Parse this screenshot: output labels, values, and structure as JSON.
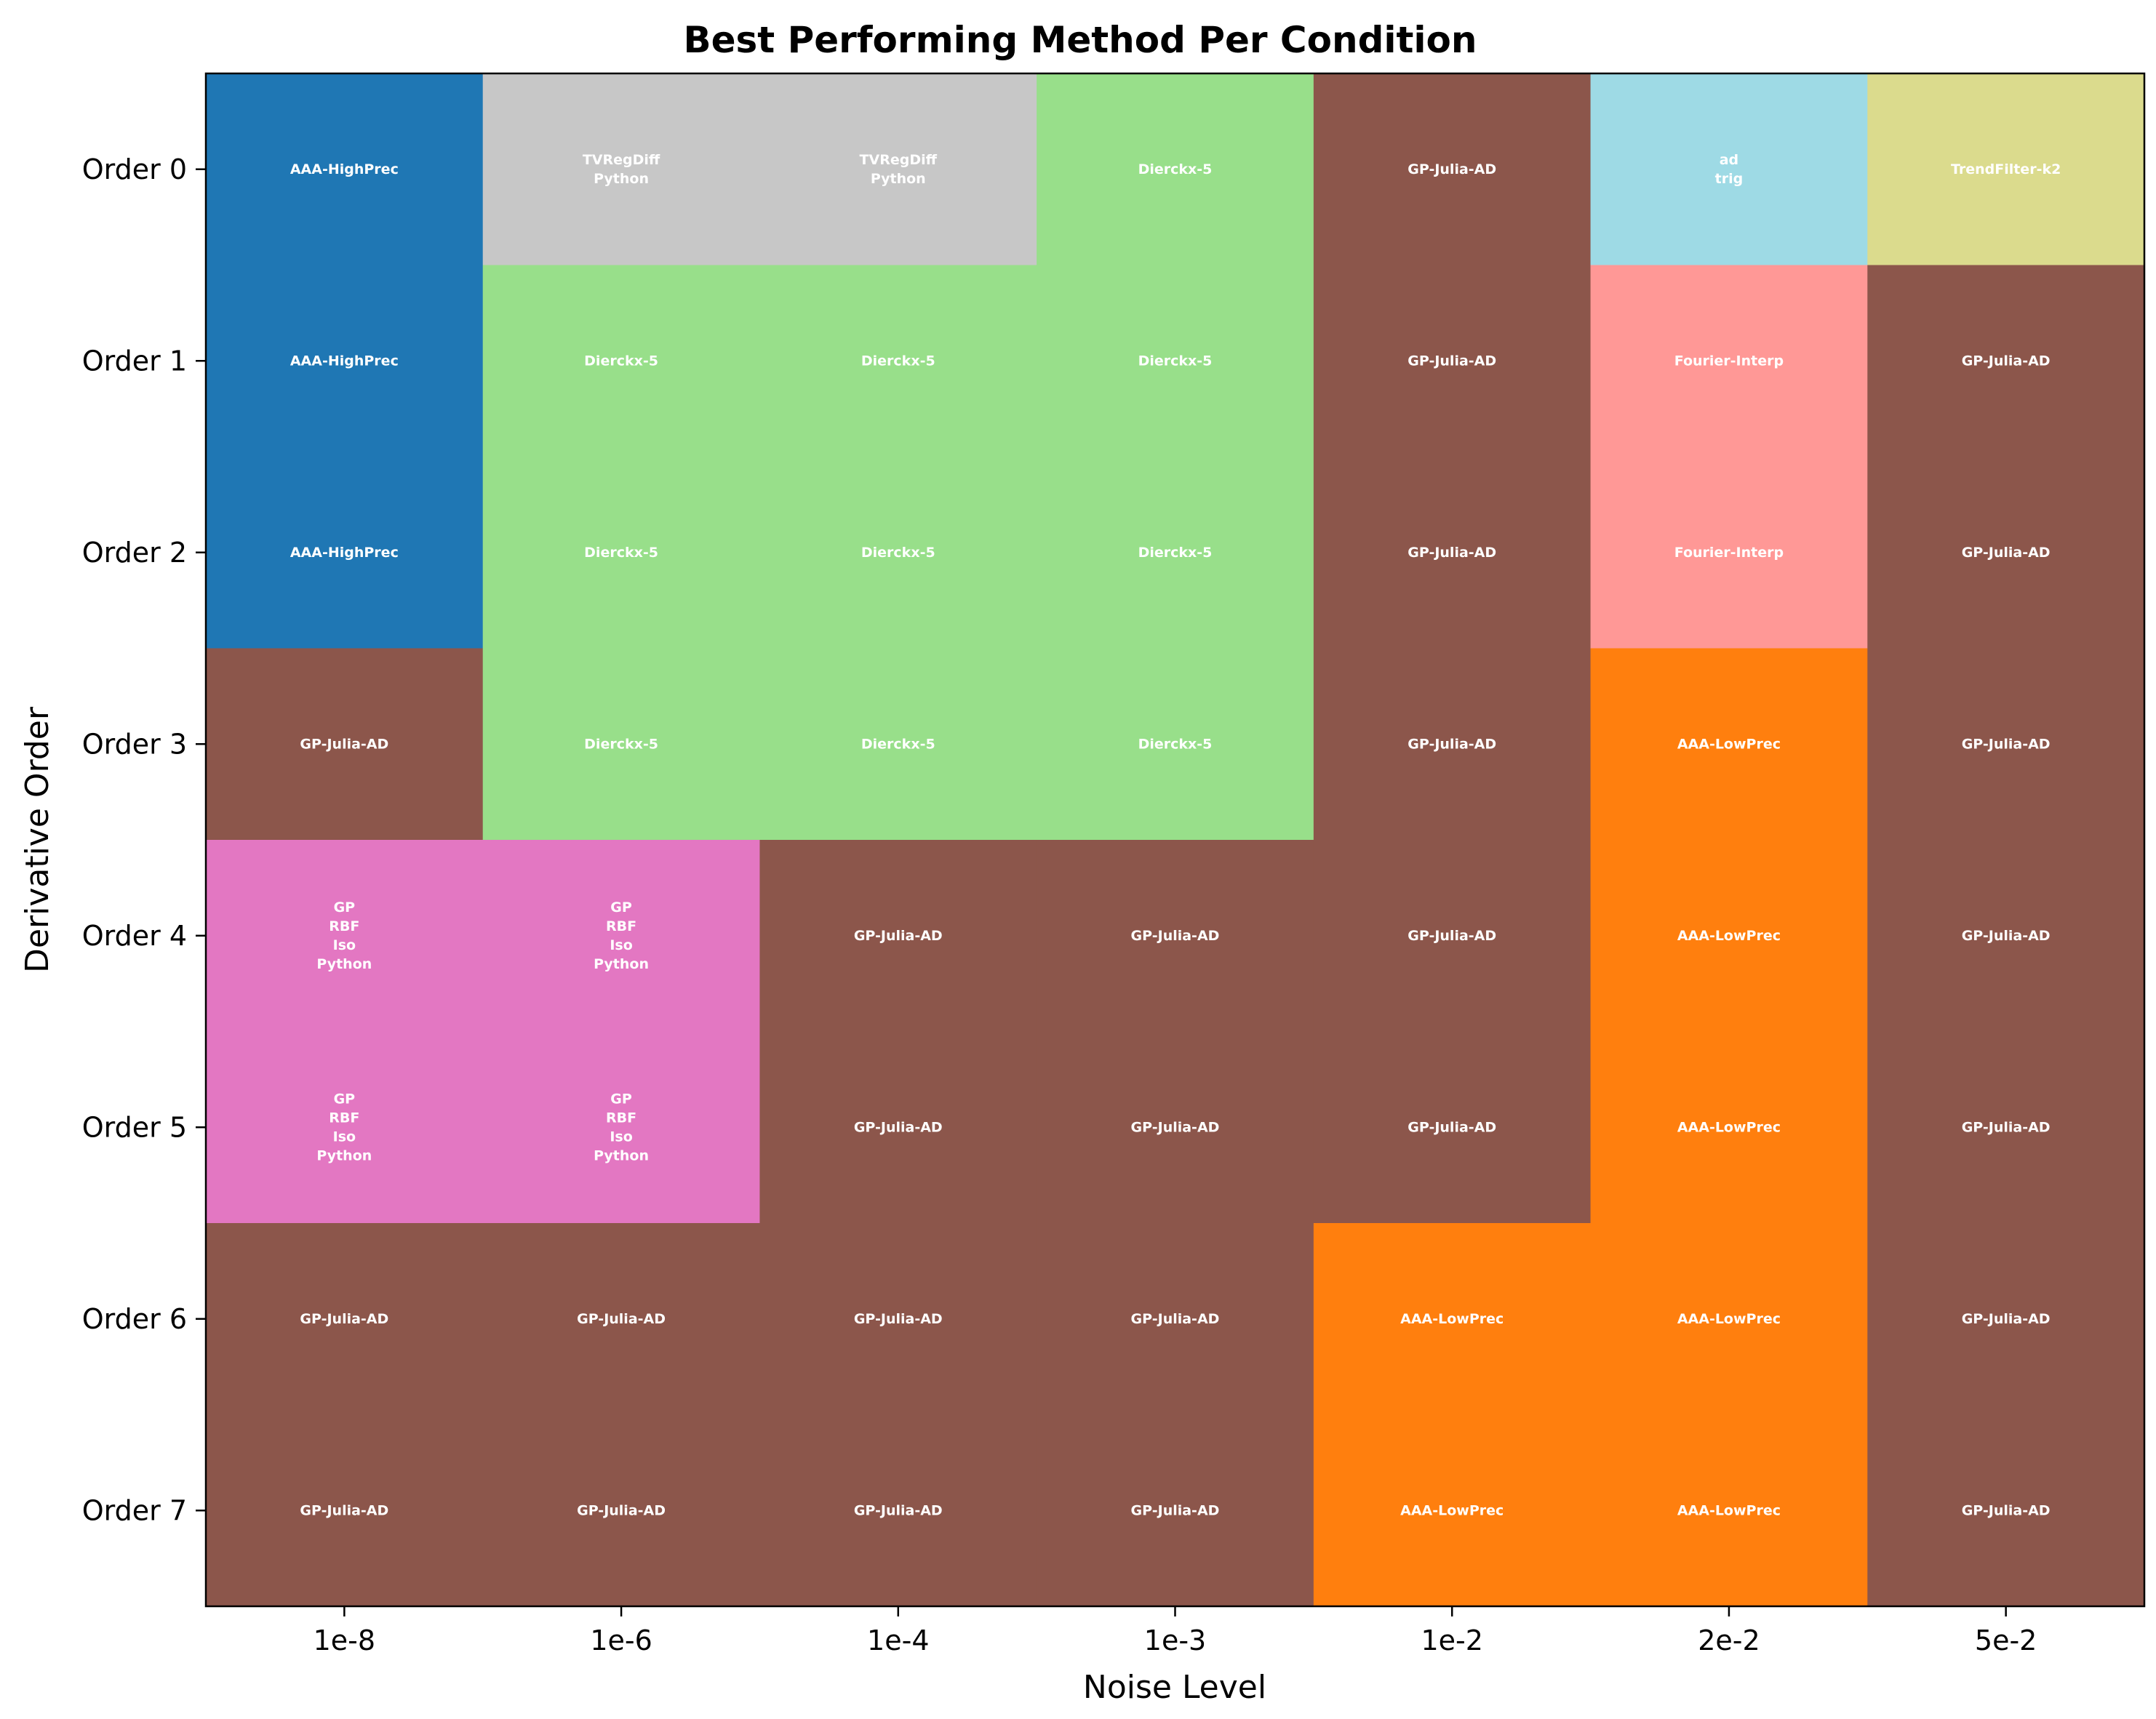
{
  "chart_data": {
    "type": "heatmap",
    "title": "Best Performing Method Per Condition",
    "xlabel": "Noise Level",
    "ylabel": "Derivative Order",
    "x_categories": [
      "1e-8",
      "1e-6",
      "1e-4",
      "1e-3",
      "1e-2",
      "2e-2",
      "5e-2"
    ],
    "y_categories": [
      "Order 0",
      "Order 1",
      "Order 2",
      "Order 3",
      "Order 4",
      "Order 5",
      "Order 6",
      "Order 7"
    ],
    "method_colors": {
      "AAA-HighPrec": "#1f77b4",
      "AAA-LowPrec": "#ff7f0e",
      "GP-Julia-AD": "#8c564b",
      "Dierckx-5": "#98df8a",
      "TVRegDiff_Python": "#c7c7c7",
      "GP_RBF_Iso_Python": "#e377c2",
      "Fourier-Interp": "#ff9896",
      "ad_trig": "#9edae5",
      "TrendFilter-k2": "#dbdb8d"
    },
    "cells": [
      [
        "AAA-HighPrec",
        "TVRegDiff_Python",
        "TVRegDiff_Python",
        "Dierckx-5",
        "GP-Julia-AD",
        "ad_trig",
        "TrendFilter-k2"
      ],
      [
        "AAA-HighPrec",
        "Dierckx-5",
        "Dierckx-5",
        "Dierckx-5",
        "GP-Julia-AD",
        "Fourier-Interp",
        "GP-Julia-AD"
      ],
      [
        "AAA-HighPrec",
        "Dierckx-5",
        "Dierckx-5",
        "Dierckx-5",
        "GP-Julia-AD",
        "Fourier-Interp",
        "GP-Julia-AD"
      ],
      [
        "GP-Julia-AD",
        "Dierckx-5",
        "Dierckx-5",
        "Dierckx-5",
        "GP-Julia-AD",
        "AAA-LowPrec",
        "GP-Julia-AD"
      ],
      [
        "GP_RBF_Iso_Python",
        "GP_RBF_Iso_Python",
        "GP-Julia-AD",
        "GP-Julia-AD",
        "GP-Julia-AD",
        "AAA-LowPrec",
        "GP-Julia-AD"
      ],
      [
        "GP_RBF_Iso_Python",
        "GP_RBF_Iso_Python",
        "GP-Julia-AD",
        "GP-Julia-AD",
        "GP-Julia-AD",
        "AAA-LowPrec",
        "GP-Julia-AD"
      ],
      [
        "GP-Julia-AD",
        "GP-Julia-AD",
        "GP-Julia-AD",
        "GP-Julia-AD",
        "AAA-LowPrec",
        "AAA-LowPrec",
        "GP-Julia-AD"
      ],
      [
        "GP-Julia-AD",
        "GP-Julia-AD",
        "GP-Julia-AD",
        "GP-Julia-AD",
        "AAA-LowPrec",
        "AAA-LowPrec",
        "GP-Julia-AD"
      ]
    ],
    "cell_labels": {
      "AAA-HighPrec": [
        "AAA-HighPrec"
      ],
      "AAA-LowPrec": [
        "AAA-LowPrec"
      ],
      "GP-Julia-AD": [
        "GP-Julia-AD"
      ],
      "Dierckx-5": [
        "Dierckx-5"
      ],
      "TVRegDiff_Python": [
        "TVRegDiff",
        "Python"
      ],
      "GP_RBF_Iso_Python": [
        "GP",
        "RBF",
        "Iso",
        "Python"
      ],
      "Fourier-Interp": [
        "Fourier-Interp"
      ],
      "ad_trig": [
        "ad",
        "trig"
      ],
      "TrendFilter-k2": [
        "TrendFilter-k2"
      ]
    },
    "grid": false,
    "legend": "none"
  }
}
